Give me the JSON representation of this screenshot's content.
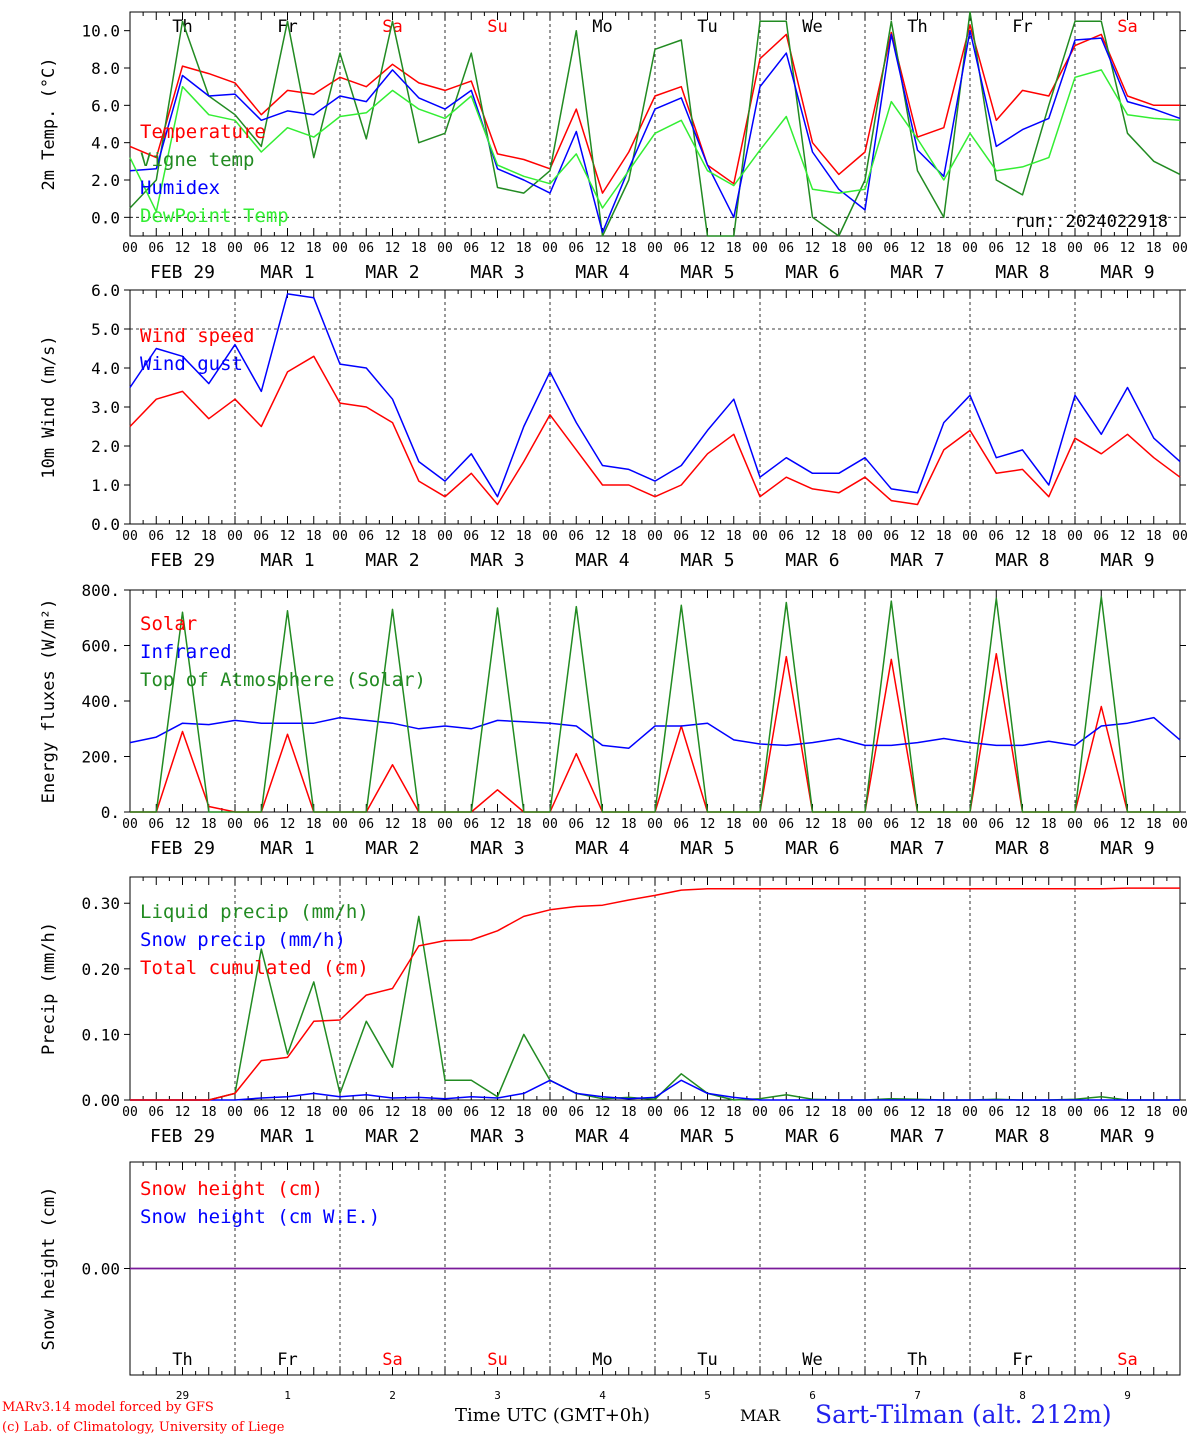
{
  "footer": {
    "model": "MARv3.14 model forced by GFS",
    "copyright": "(c) Lab. of Climatology, University of Liege",
    "time_label": "Time UTC (GMT+0h)",
    "month": "MAR",
    "station": "Sart-Tilman (alt. 212m)"
  },
  "colors": {
    "red": "#ff0000",
    "green": "#228b22",
    "blue": "#0000ff",
    "lightgreen": "#33ee33",
    "purple": "#7a1a9a"
  },
  "days": [
    {
      "abbr": "Th",
      "weekend": false,
      "date_label": "FEB 29",
      "num": "29"
    },
    {
      "abbr": "Fr",
      "weekend": false,
      "date_label": "MAR  1",
      "num": "1"
    },
    {
      "abbr": "Sa",
      "weekend": true,
      "date_label": "MAR  2",
      "num": "2"
    },
    {
      "abbr": "Su",
      "weekend": true,
      "date_label": "MAR  3",
      "num": "3"
    },
    {
      "abbr": "Mo",
      "weekend": false,
      "date_label": "MAR  4",
      "num": "4"
    },
    {
      "abbr": "Tu",
      "weekend": false,
      "date_label": "MAR  5",
      "num": "5"
    },
    {
      "abbr": "We",
      "weekend": false,
      "date_label": "MAR  6",
      "num": "6"
    },
    {
      "abbr": "Th",
      "weekend": false,
      "date_label": "MAR  7",
      "num": "7"
    },
    {
      "abbr": "Fr",
      "weekend": false,
      "date_label": "MAR  8",
      "num": "8"
    },
    {
      "abbr": "Sa",
      "weekend": true,
      "date_label": "MAR  9",
      "num": "9"
    }
  ],
  "hour_ticks": [
    "00",
    "06",
    "12",
    "18"
  ],
  "chart_data": [
    {
      "type": "line",
      "ylabel": "2m Temp. (°C)",
      "ylim": [
        -1,
        11
      ],
      "yticks": [
        0,
        2,
        4,
        6,
        8,
        10
      ],
      "ytick_labels": [
        "0.0",
        "2.0",
        "4.0",
        "6.0",
        "8.0",
        "10.0"
      ],
      "ref_line": 0,
      "annotation": "run: 2024022918",
      "x_hours": [
        0,
        6,
        12,
        18,
        24,
        30,
        36,
        42,
        48,
        54,
        60,
        66,
        72,
        78,
        84,
        90,
        96,
        102,
        108,
        114,
        120,
        126,
        132,
        138,
        144,
        150,
        156,
        162,
        168,
        174,
        180,
        186,
        192,
        198,
        204,
        210,
        216,
        222,
        228,
        234,
        240
      ],
      "series": [
        {
          "name": "Temperature",
          "color": "red",
          "values": [
            3.8,
            3.2,
            8.1,
            7.7,
            7.2,
            5.5,
            6.8,
            6.6,
            7.5,
            7.0,
            8.2,
            7.2,
            6.8,
            7.3,
            3.4,
            3.1,
            2.6,
            5.8,
            1.3,
            3.5,
            6.5,
            7.0,
            2.8,
            1.8,
            8.5,
            9.8,
            4.0,
            2.3,
            3.5,
            9.9,
            4.3,
            4.8,
            10.3,
            5.2,
            6.8,
            6.5,
            9.2,
            9.8,
            6.5,
            6.0,
            6.0
          ]
        },
        {
          "name": "Vigne temp",
          "color": "green",
          "values": [
            0.5,
            2.0,
            10.5,
            6.5,
            5.5,
            3.8,
            10.5,
            3.2,
            8.8,
            4.2,
            10.5,
            4.0,
            4.5,
            8.8,
            1.6,
            1.3,
            2.5,
            10.0,
            -1.5,
            2.0,
            9.0,
            9.5,
            -1.0,
            -1.5,
            10.5,
            10.5,
            0.0,
            -1.5,
            2.0,
            10.5,
            2.5,
            0.0,
            11.0,
            2.0,
            1.2,
            6.0,
            10.5,
            10.5,
            4.5,
            3.0,
            2.3
          ]
        },
        {
          "name": "Humidex",
          "color": "blue",
          "values": [
            2.5,
            2.6,
            7.6,
            6.5,
            6.6,
            5.2,
            5.7,
            5.5,
            6.5,
            6.2,
            7.9,
            6.4,
            5.8,
            6.8,
            2.6,
            2.0,
            1.3,
            4.6,
            -0.8,
            2.6,
            5.8,
            6.4,
            2.8,
            0.0,
            7.0,
            8.8,
            3.5,
            1.5,
            0.4,
            9.8,
            3.6,
            2.2,
            10.0,
            3.8,
            4.7,
            5.3,
            9.5,
            9.6,
            6.2,
            5.8,
            5.3
          ]
        },
        {
          "name": "DewPoint Temp",
          "color": "lightgreen",
          "values": [
            3.2,
            0.3,
            7.0,
            5.5,
            5.2,
            3.5,
            4.8,
            4.3,
            5.4,
            5.6,
            6.8,
            5.8,
            5.3,
            6.5,
            2.8,
            2.2,
            1.8,
            3.4,
            0.5,
            2.5,
            4.5,
            5.2,
            2.5,
            1.7,
            3.6,
            5.4,
            1.5,
            1.3,
            1.5,
            6.2,
            4.2,
            2.0,
            4.5,
            2.5,
            2.7,
            3.2,
            7.5,
            7.9,
            5.5,
            5.3,
            5.2
          ]
        }
      ]
    },
    {
      "type": "line",
      "ylabel": "10m Wind (m/s)",
      "ylim": [
        0,
        6
      ],
      "yticks": [
        0,
        1,
        2,
        3,
        4,
        5,
        6
      ],
      "ytick_labels": [
        "0.0",
        "1.0",
        "2.0",
        "3.0",
        "4.0",
        "5.0",
        "6.0"
      ],
      "ref_line": 5,
      "x_hours": [
        0,
        6,
        12,
        18,
        24,
        30,
        36,
        42,
        48,
        54,
        60,
        66,
        72,
        78,
        84,
        90,
        96,
        102,
        108,
        114,
        120,
        126,
        132,
        138,
        144,
        150,
        156,
        162,
        168,
        174,
        180,
        186,
        192,
        198,
        204,
        210,
        216,
        222,
        228,
        234,
        240
      ],
      "series": [
        {
          "name": "Wind speed",
          "color": "red",
          "values": [
            2.5,
            3.2,
            3.4,
            2.7,
            3.2,
            2.5,
            3.9,
            4.3,
            3.1,
            3.0,
            2.6,
            1.1,
            0.7,
            1.3,
            0.5,
            1.6,
            2.8,
            1.9,
            1.0,
            1.0,
            0.7,
            1.0,
            1.8,
            2.3,
            0.7,
            1.2,
            0.9,
            0.8,
            1.2,
            0.6,
            0.5,
            1.9,
            2.4,
            1.3,
            1.4,
            0.7,
            2.2,
            1.8,
            2.3,
            1.7,
            1.2
          ]
        },
        {
          "name": "Wind gust",
          "color": "blue",
          "values": [
            3.5,
            4.5,
            4.3,
            3.6,
            4.6,
            3.4,
            5.9,
            5.8,
            4.1,
            4.0,
            3.2,
            1.6,
            1.1,
            1.8,
            0.7,
            2.5,
            3.9,
            2.6,
            1.5,
            1.4,
            1.1,
            1.5,
            2.4,
            3.2,
            1.2,
            1.7,
            1.3,
            1.3,
            1.7,
            0.9,
            0.8,
            2.6,
            3.3,
            1.7,
            1.9,
            1.0,
            3.3,
            2.3,
            3.5,
            2.2,
            1.6
          ]
        }
      ]
    },
    {
      "type": "line",
      "ylabel": "Energy fluxes (W/m²)",
      "ylim": [
        0,
        800
      ],
      "yticks": [
        0,
        200,
        400,
        600,
        800
      ],
      "ytick_labels": [
        "0.",
        "200.",
        "400.",
        "600.",
        "800."
      ],
      "x_hours": [
        0,
        6,
        12,
        18,
        24,
        30,
        36,
        42,
        48,
        54,
        60,
        66,
        72,
        78,
        84,
        90,
        96,
        102,
        108,
        114,
        120,
        126,
        132,
        138,
        144,
        150,
        156,
        162,
        168,
        174,
        180,
        186,
        192,
        198,
        204,
        210,
        216,
        222,
        228,
        234,
        240
      ],
      "series": [
        {
          "name": "Solar",
          "color": "red",
          "values": [
            0,
            0,
            290,
            20,
            0,
            0,
            280,
            0,
            0,
            0,
            170,
            0,
            0,
            0,
            80,
            0,
            0,
            210,
            0,
            0,
            0,
            310,
            0,
            0,
            0,
            560,
            0,
            0,
            0,
            550,
            0,
            0,
            0,
            570,
            0,
            0,
            0,
            380,
            0,
            0,
            0
          ]
        },
        {
          "name": "Infrared",
          "color": "blue",
          "values": [
            250,
            270,
            320,
            315,
            330,
            320,
            320,
            320,
            340,
            330,
            320,
            300,
            310,
            300,
            330,
            325,
            320,
            310,
            240,
            230,
            310,
            310,
            320,
            260,
            245,
            240,
            250,
            265,
            240,
            240,
            250,
            265,
            250,
            240,
            240,
            255,
            240,
            310,
            320,
            340,
            260
          ]
        },
        {
          "name": "Top of Atmosphere (Solar)",
          "color": "green",
          "values": [
            0,
            0,
            720,
            0,
            0,
            0,
            725,
            0,
            0,
            0,
            730,
            0,
            0,
            0,
            735,
            0,
            0,
            740,
            0,
            0,
            0,
            745,
            0,
            0,
            0,
            755,
            0,
            0,
            0,
            760,
            0,
            0,
            0,
            770,
            0,
            0,
            0,
            775,
            0,
            0,
            0
          ]
        }
      ]
    },
    {
      "type": "line",
      "ylabel": "Precip (mm/h)",
      "ylim": [
        0,
        0.34
      ],
      "yticks": [
        0,
        0.1,
        0.2,
        0.3
      ],
      "ytick_labels": [
        "0.00",
        "0.10",
        "0.20",
        "0.30"
      ],
      "x_hours": [
        0,
        6,
        12,
        18,
        24,
        30,
        36,
        42,
        48,
        54,
        60,
        66,
        72,
        78,
        84,
        90,
        96,
        102,
        108,
        114,
        120,
        126,
        132,
        138,
        144,
        150,
        156,
        162,
        168,
        174,
        180,
        186,
        192,
        198,
        204,
        210,
        216,
        222,
        228,
        234,
        240
      ],
      "series": [
        {
          "name": "Liquid precip (mm/h)",
          "color": "green",
          "values": [
            0,
            0,
            0,
            0,
            0.01,
            0.23,
            0.07,
            0.18,
            0.01,
            0.12,
            0.05,
            0.28,
            0.03,
            0.03,
            0.005,
            0.1,
            0.03,
            0.01,
            0.002,
            0.004,
            0.001,
            0.04,
            0.01,
            0,
            0.002,
            0.008,
            0.001,
            0,
            0,
            0.002,
            0.001,
            0,
            0,
            0.001,
            0,
            0,
            0.001,
            0.005,
            0,
            0,
            0
          ]
        },
        {
          "name": "Snow precip (mm/h)",
          "color": "blue",
          "values": [
            0,
            0,
            0,
            0,
            0,
            0.003,
            0.005,
            0.01,
            0.005,
            0.008,
            0.003,
            0.004,
            0.002,
            0.005,
            0.003,
            0.01,
            0.03,
            0.01,
            0.005,
            0.002,
            0.004,
            0.03,
            0.01,
            0.004,
            0,
            0,
            0,
            0,
            0,
            0,
            0,
            0,
            0,
            0,
            0,
            0,
            0,
            0,
            0,
            0,
            0
          ]
        },
        {
          "name": "Total cumulated (cm)",
          "color": "red",
          "values": [
            0,
            0,
            0,
            0,
            0.01,
            0.06,
            0.065,
            0.12,
            0.122,
            0.16,
            0.17,
            0.235,
            0.243,
            0.244,
            0.258,
            0.28,
            0.29,
            0.295,
            0.297,
            0.305,
            0.312,
            0.32,
            0.322,
            0.322,
            0.322,
            0.322,
            0.322,
            0.322,
            0.322,
            0.322,
            0.322,
            0.322,
            0.322,
            0.322,
            0.322,
            0.322,
            0.322,
            0.322,
            0.323,
            0.323,
            0.323
          ]
        }
      ]
    },
    {
      "type": "line",
      "ylabel": "Snow height (cm)",
      "ylim": [
        -1,
        1
      ],
      "yticks": [
        0
      ],
      "ytick_labels": [
        "0.00"
      ],
      "x_hours": [
        0,
        240
      ],
      "series": [
        {
          "name": "Snow height (cm)",
          "color": "red",
          "values": [
            0,
            0
          ]
        },
        {
          "name": "Snow height (cm W.E.)",
          "color": "blue",
          "values": [
            0,
            0
          ]
        }
      ]
    }
  ]
}
